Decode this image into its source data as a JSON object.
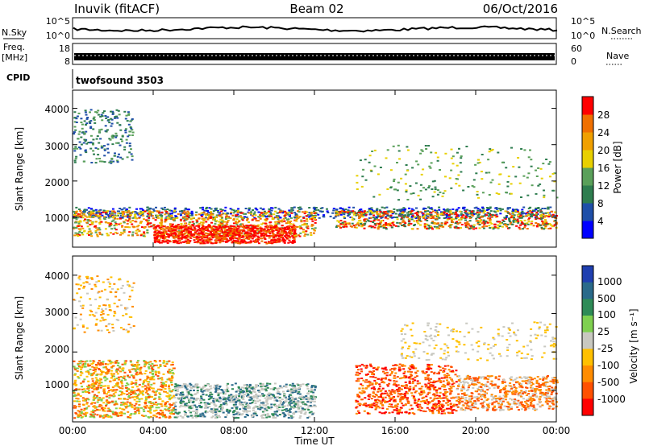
{
  "header": {
    "station": "Inuvik (fitACF)",
    "beam": "Beam 02",
    "date": "06/Oct/2016"
  },
  "strips": {
    "nsky_label": "N.Sky",
    "nsky_ticks": [
      "10^5",
      "10^0"
    ],
    "nsearch_label": "N.Search",
    "freq_label_1": "Freq.",
    "freq_label_2": "[MHz]",
    "freq_ticks": [
      "18",
      "8"
    ],
    "nave_label": "Nave",
    "nave_ticks": [
      "60",
      "0"
    ],
    "cpid_label": "CPID",
    "cpid_value": "twofsound 3503"
  },
  "axes": {
    "ylabel": "Slant Range [km]",
    "y_ticks": [
      "1000",
      "2000",
      "3000",
      "4000"
    ],
    "xlabel": "Time UT",
    "x_ticks": [
      "00:00",
      "04:00",
      "08:00",
      "12:00",
      "16:00",
      "20:00",
      "00:00"
    ]
  },
  "power_scale": {
    "label": "Power [dB]",
    "ticks": [
      "4",
      "8",
      "12",
      "16",
      "20",
      "24",
      "28"
    ],
    "colors": [
      "#0000ff",
      "#1f4fa8",
      "#2e7d4f",
      "#5aa05a",
      "#e8d000",
      "#f0a000",
      "#f07000",
      "#ff0000"
    ]
  },
  "velocity_scale": {
    "label": "Velocity [m s⁻¹]",
    "ticks": [
      "1000",
      "500",
      "100",
      "25",
      "-25",
      "-100",
      "-500",
      "-1000"
    ],
    "colors": [
      "#1f3fb0",
      "#2a6a8a",
      "#2e8b57",
      "#7fd050",
      "#c8c8c0",
      "#ffc000",
      "#ff8c00",
      "#ff5000",
      "#ff0000"
    ]
  },
  "chart_data": [
    {
      "type": "heatmap",
      "title": "Power [dB]",
      "xlabel": "Time UT",
      "ylabel": "Slant Range [km]",
      "xlim": [
        "00:00",
        "24:00"
      ],
      "ylim": [
        180,
        4500
      ],
      "series": [
        {
          "hours": [
            0,
            24
          ],
          "range_km": [
            400,
            1300
          ],
          "level": "16-28"
        },
        {
          "hours": [
            4,
            11
          ],
          "range_km": [
            300,
            900
          ],
          "level": "24-28+"
        },
        {
          "hours": [
            14,
            24
          ],
          "range_km": [
            700,
            1200
          ],
          "level": "12-28"
        },
        {
          "hours": [
            0,
            3
          ],
          "range_km": [
            2500,
            4000
          ],
          "level": "4-16"
        }
      ]
    },
    {
      "type": "heatmap",
      "title": "Velocity [m s⁻¹]",
      "xlabel": "Time UT",
      "ylabel": "Slant Range [km]",
      "xlim": [
        "00:00",
        "24:00"
      ],
      "ylim": [
        180,
        4500
      ],
      "series": [
        {
          "hours": [
            0,
            5
          ],
          "range_km": [
            300,
            1800
          ],
          "velocity": "-100 to -500"
        },
        {
          "hours": [
            5,
            12
          ],
          "range_km": [
            300,
            1200
          ],
          "velocity": "-25 to 25"
        },
        {
          "hours": [
            14,
            19
          ],
          "range_km": [
            400,
            1700
          ],
          "velocity": "-100 to -500"
        },
        {
          "hours": [
            19,
            24
          ],
          "range_km": [
            500,
            1400
          ],
          "velocity": "-100 to -500"
        }
      ]
    }
  ]
}
